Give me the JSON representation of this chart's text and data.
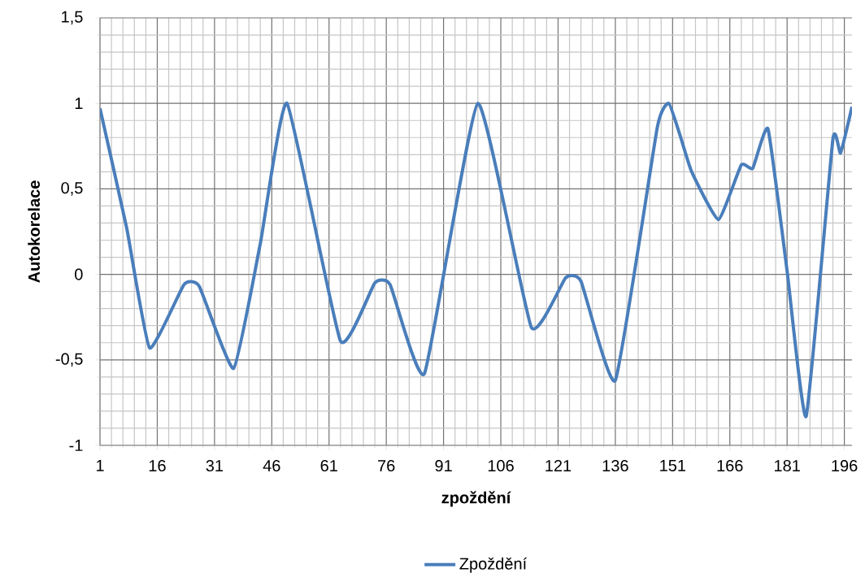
{
  "chart_data": {
    "type": "line",
    "xlabel": "zpoždění",
    "ylabel": "Autokorelace",
    "xlim": [
      1,
      198
    ],
    "xticks": [
      1,
      16,
      31,
      46,
      61,
      76,
      91,
      106,
      121,
      136,
      151,
      166,
      181,
      196
    ],
    "ylim": [
      -1,
      1.5
    ],
    "yticks": [
      -1,
      {
        "value": -0.5,
        "label": "-0,5"
      },
      0,
      {
        "value": 0.5,
        "label": "0,5"
      },
      1,
      {
        "value": 1.5,
        "label": "1,5"
      }
    ],
    "grid": true,
    "legend": "bottom",
    "marker": "none",
    "line_style": "solid",
    "series": [
      {
        "name": "Zpoždění",
        "color": "#4a7ebb",
        "x": [
          1,
          8,
          14,
          23,
          27,
          36,
          43,
          50,
          64,
          73,
          77,
          86,
          100,
          114,
          123,
          127,
          136,
          147,
          150,
          153,
          156,
          163,
          169,
          172,
          176,
          181,
          186,
          193,
          195,
          198
        ],
        "values": [
          0.97,
          0.27,
          -0.43,
          -0.06,
          -0.07,
          -0.55,
          0.18,
          1.0,
          -0.39,
          -0.05,
          -0.06,
          -0.58,
          1.0,
          -0.31,
          -0.02,
          -0.04,
          -0.62,
          0.86,
          1.0,
          0.81,
          0.6,
          0.32,
          0.64,
          0.62,
          0.85,
          0.02,
          -0.83,
          0.79,
          0.71,
          0.98
        ]
      }
    ]
  }
}
